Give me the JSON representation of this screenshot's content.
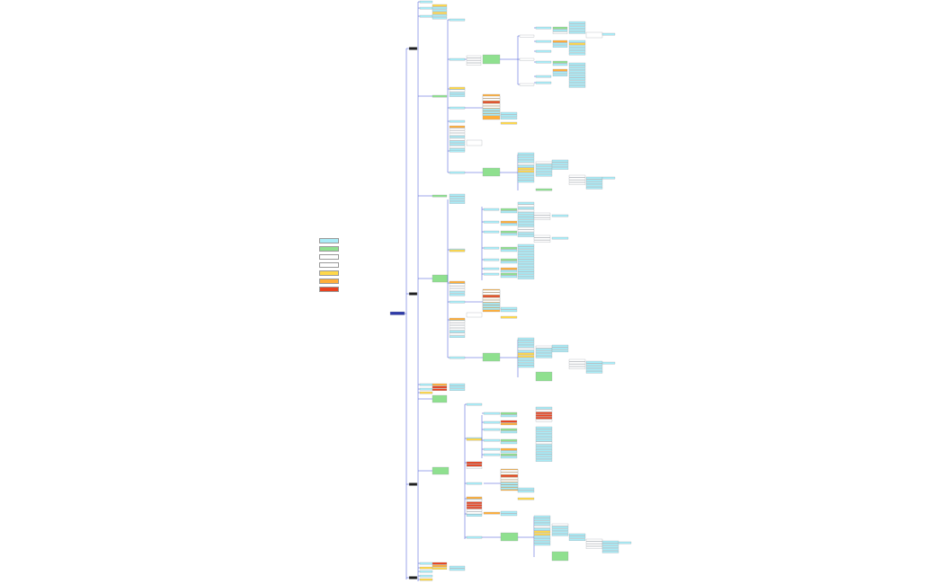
{
  "colors": {
    "background": "#ffffff",
    "connector": "#3b4fd6",
    "root": "#2e3aa8",
    "section_header": "#1f1f1f",
    "cyan": "#a9ecf7",
    "green": "#8fe08f",
    "yellow": "#ffd84a",
    "orange": "#ffae3a",
    "red": "#e9421f",
    "white": "#ffffff",
    "outline": "#9aa0a6"
  },
  "legend": {
    "items": [
      {
        "color": "#a9ecf7"
      },
      {
        "color": "#8fe08f"
      },
      {
        "color": "#ffffff"
      },
      {
        "color": "#ffffff"
      },
      {
        "color": "#ffd84a"
      },
      {
        "color": "#ffae3a"
      },
      {
        "color": "#e9421f"
      }
    ]
  },
  "root": {
    "label": ""
  },
  "sections": [
    {
      "label": ""
    },
    {
      "label": ""
    },
    {
      "label": ""
    },
    {
      "label": ""
    }
  ]
}
